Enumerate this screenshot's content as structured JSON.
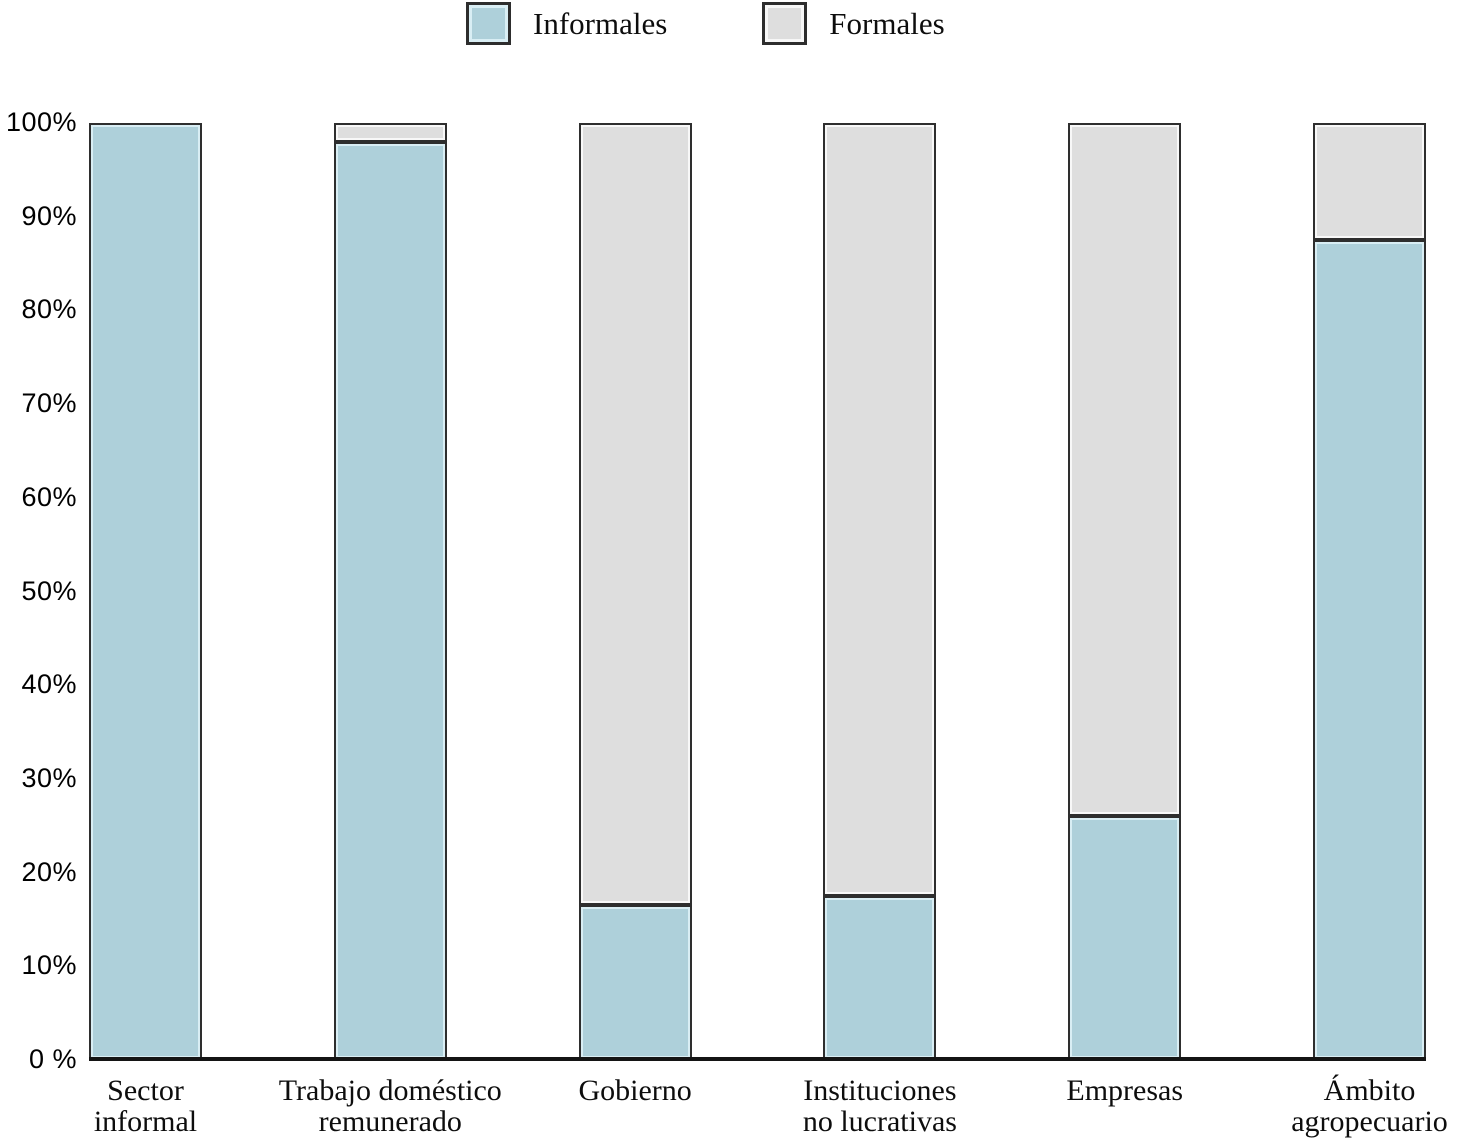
{
  "chart_data": {
    "type": "bar",
    "stacked": true,
    "percent_stacked": true,
    "title": "",
    "xlabel": "",
    "ylabel": "",
    "ylim": [
      0,
      100
    ],
    "grid": false,
    "legend_position": "top-center",
    "categories": [
      "Sector informal",
      "Trabajo doméstico remunerado",
      "Gobierno",
      "Instituciones no lucrativas",
      "Empresas",
      "Ámbito agropecuario"
    ],
    "category_lines": [
      [
        "Sector",
        "informal"
      ],
      [
        "Trabajo doméstico",
        "remunerado"
      ],
      [
        "Gobierno"
      ],
      [
        "Instituciones",
        "no lucrativas"
      ],
      [
        "Empresas"
      ],
      [
        "Ámbito",
        "agropecuario"
      ]
    ],
    "series": [
      {
        "name": "Informales",
        "color": "#aed0da",
        "values": [
          100,
          98,
          16.5,
          17.5,
          26,
          87.5
        ]
      },
      {
        "name": "Formales",
        "color": "#dedede",
        "values": [
          0,
          2,
          83.5,
          82.5,
          74,
          12.5
        ]
      }
    ],
    "ytick_labels": [
      "100%",
      "90%",
      "80%",
      "70%",
      "60%",
      "50%",
      "40%",
      "30%",
      "20%",
      "10%",
      "0 %"
    ],
    "ytick_values": [
      100,
      90,
      80,
      70,
      60,
      50,
      40,
      30,
      20,
      10,
      0
    ],
    "colors": {
      "informales_fill": "#aed0da",
      "formales_fill": "#dedede",
      "bar_border": "#2e2e2e",
      "axis_line": "#141414",
      "text": "#0d0d0d"
    }
  }
}
